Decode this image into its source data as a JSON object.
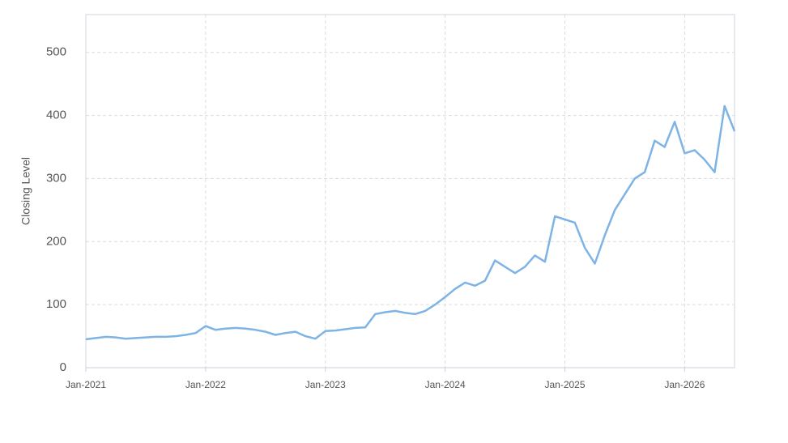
{
  "chart_data": {
    "type": "line",
    "y_label": "Closing Level",
    "x": [
      "2021-01",
      "2021-02",
      "2021-03",
      "2021-04",
      "2021-05",
      "2021-06",
      "2021-07",
      "2021-08",
      "2021-09",
      "2021-10",
      "2021-11",
      "2021-12",
      "2022-01",
      "2022-02",
      "2022-03",
      "2022-04",
      "2022-05",
      "2022-06",
      "2022-07",
      "2022-08",
      "2022-09",
      "2022-10",
      "2022-11",
      "2022-12",
      "2023-01",
      "2023-02",
      "2023-03",
      "2023-04",
      "2023-05",
      "2023-06",
      "2023-07",
      "2023-08",
      "2023-09",
      "2023-10",
      "2023-11",
      "2023-12",
      "2024-01",
      "2024-02",
      "2024-03",
      "2024-04",
      "2024-05",
      "2024-06",
      "2024-07",
      "2024-08",
      "2024-09",
      "2024-10",
      "2024-11",
      "2024-12",
      "2025-01",
      "2025-02",
      "2025-03",
      "2025-04",
      "2025-05",
      "2025-06",
      "2025-07",
      "2025-08",
      "2025-09",
      "2025-10",
      "2025-11",
      "2025-12",
      "2026-01",
      "2026-02",
      "2026-03",
      "2026-04",
      "2026-05",
      "2026-06"
    ],
    "values": [
      45,
      47,
      49,
      48,
      46,
      47,
      48,
      49,
      49,
      50,
      52,
      55,
      66,
      60,
      62,
      63,
      62,
      60,
      57,
      52,
      55,
      57,
      50,
      46,
      58,
      59,
      61,
      63,
      64,
      85,
      88,
      90,
      87,
      85,
      90,
      100,
      112,
      125,
      135,
      130,
      138,
      170,
      160,
      150,
      160,
      178,
      168,
      240,
      235,
      230,
      190,
      165,
      210,
      250,
      275,
      300,
      310,
      360,
      350,
      390,
      340,
      345,
      330,
      310,
      415,
      375
    ],
    "color": "#7eb3e6",
    "xlim": [
      "2021-01",
      "2026-06"
    ],
    "xticks": [
      {
        "value": "2021-01",
        "label": "Jan-2021"
      },
      {
        "value": "2022-01",
        "label": "Jan-2022"
      },
      {
        "value": "2023-01",
        "label": "Jan-2023"
      },
      {
        "value": "2024-01",
        "label": "Jan-2024"
      },
      {
        "value": "2025-01",
        "label": "Jan-2025"
      },
      {
        "value": "2026-01",
        "label": "Jan-2026"
      }
    ],
    "ylim": [
      0,
      560
    ],
    "yticks": [
      0,
      100,
      200,
      300,
      400,
      500
    ],
    "grid": true
  }
}
